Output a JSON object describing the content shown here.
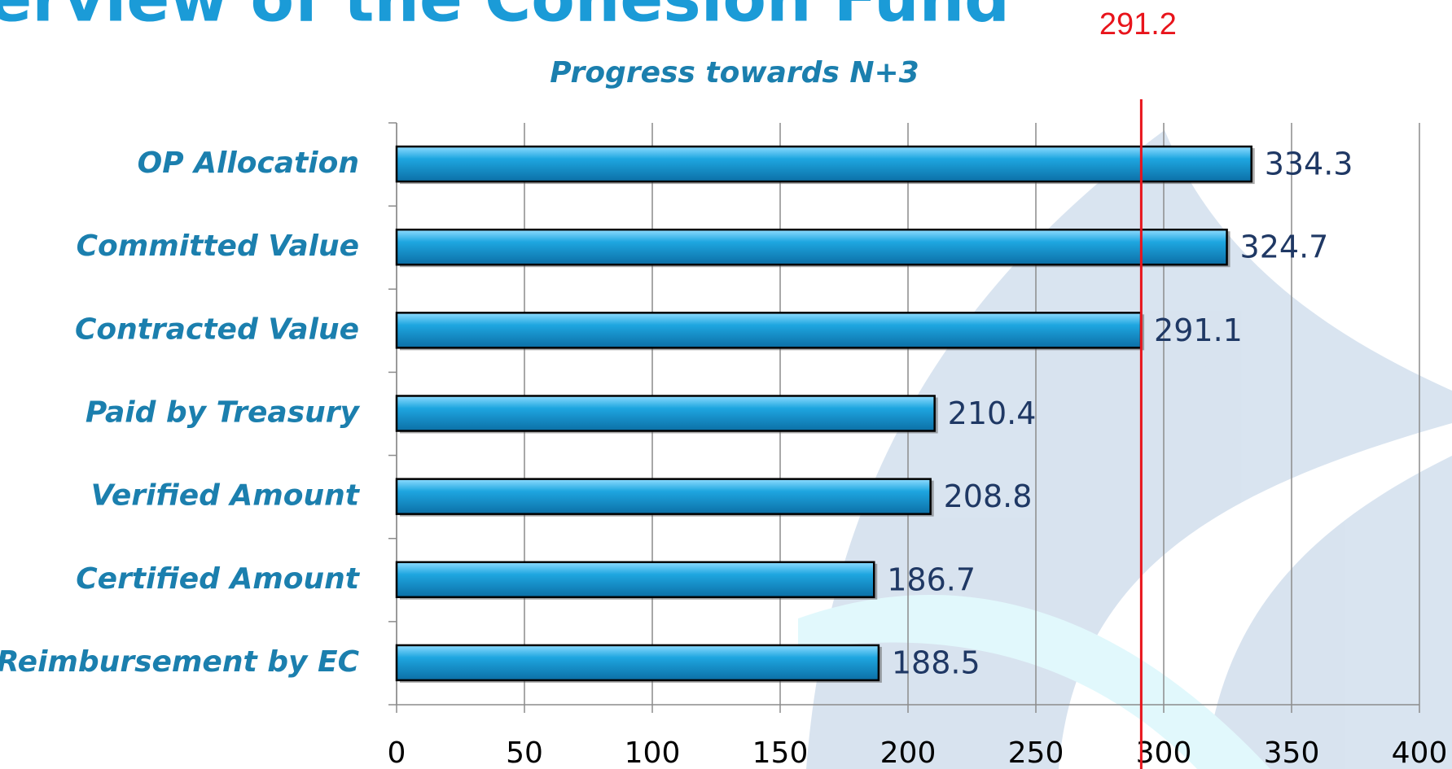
{
  "page_title": "Overview of the Cohesion Fund",
  "chart_data": {
    "type": "bar",
    "orientation": "horizontal",
    "title": "Progress towards N+3",
    "categories": [
      "OP Allocation",
      "Committed Value",
      "Contracted Value",
      "Paid by Treasury",
      "Verified Amount",
      "Certified Amount",
      "Reimbursement by EC"
    ],
    "values": [
      334.3,
      324.7,
      291.1,
      210.4,
      208.8,
      186.7,
      188.5
    ],
    "color": "#1ea6e0",
    "xlim": [
      0,
      400
    ],
    "xticks": [
      0,
      50,
      100,
      150,
      200,
      250,
      300,
      350,
      400
    ],
    "grid": true,
    "reference_line": 291.2,
    "reference_color": "#e8141b"
  }
}
